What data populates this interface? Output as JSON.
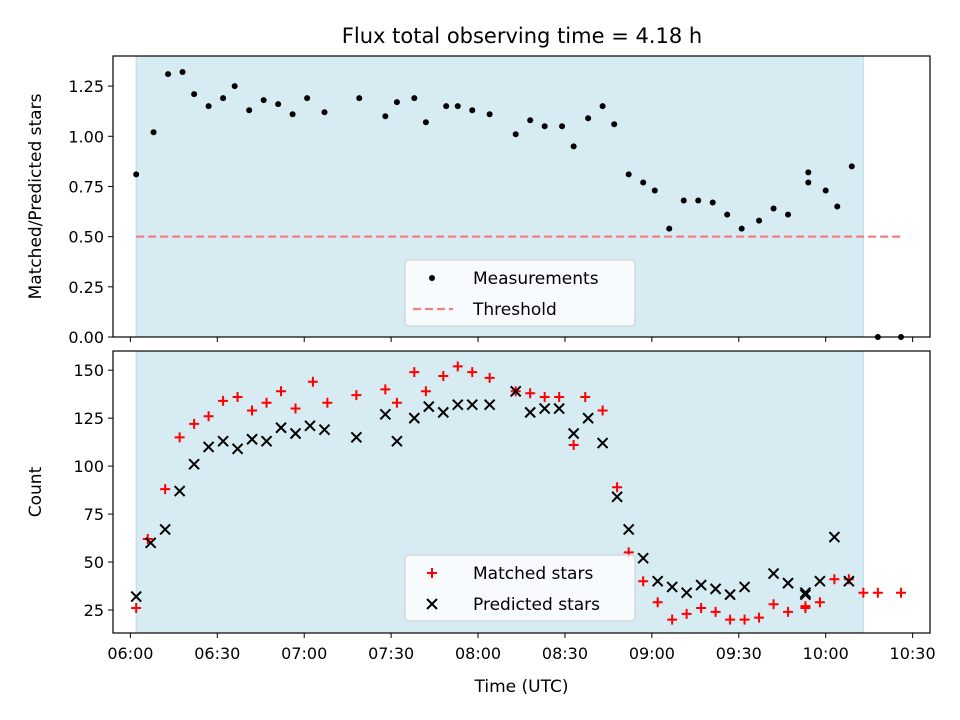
{
  "figure": {
    "title": "Flux total observing time = 4.18 h"
  },
  "chart_data": [
    {
      "type": "scatter",
      "ylabel": "Matched/Predicted stars",
      "xlabel": "",
      "xlim": [
        "05:54",
        "10:36"
      ],
      "ylim": [
        0,
        1.4
      ],
      "yticks": [
        "0.00",
        "0.25",
        "0.50",
        "0.75",
        "1.00",
        "1.25"
      ],
      "shaded_region": {
        "x": [
          "06:02",
          "10:13"
        ],
        "color": "#add8e6"
      },
      "threshold": {
        "name": "Threshold",
        "y": 0.5,
        "x": [
          "06:02",
          "10:27"
        ],
        "color": "#f08080"
      },
      "legend": {
        "position": "lower-center",
        "entries": [
          "Measurements",
          "Threshold"
        ]
      },
      "series": [
        {
          "name": "Measurements",
          "color": "#000000",
          "points": [
            [
              "06:02",
              0.81
            ],
            [
              "06:08",
              1.02
            ],
            [
              "06:13",
              1.31
            ],
            [
              "06:18",
              1.32
            ],
            [
              "06:22",
              1.21
            ],
            [
              "06:27",
              1.15
            ],
            [
              "06:32",
              1.19
            ],
            [
              "06:36",
              1.25
            ],
            [
              "06:41",
              1.13
            ],
            [
              "06:46",
              1.18
            ],
            [
              "06:51",
              1.16
            ],
            [
              "06:56",
              1.11
            ],
            [
              "07:01",
              1.19
            ],
            [
              "07:07",
              1.12
            ],
            [
              "07:19",
              1.19
            ],
            [
              "07:28",
              1.1
            ],
            [
              "07:32",
              1.17
            ],
            [
              "07:38",
              1.19
            ],
            [
              "07:42",
              1.07
            ],
            [
              "07:49",
              1.15
            ],
            [
              "07:53",
              1.15
            ],
            [
              "07:58",
              1.13
            ],
            [
              "08:04",
              1.11
            ],
            [
              "08:13",
              1.01
            ],
            [
              "08:18",
              1.08
            ],
            [
              "08:23",
              1.05
            ],
            [
              "08:29",
              1.05
            ],
            [
              "08:33",
              0.95
            ],
            [
              "08:38",
              1.09
            ],
            [
              "08:43",
              1.15
            ],
            [
              "08:47",
              1.06
            ],
            [
              "08:52",
              0.81
            ],
            [
              "08:57",
              0.77
            ],
            [
              "09:01",
              0.73
            ],
            [
              "09:06",
              0.54
            ],
            [
              "09:11",
              0.68
            ],
            [
              "09:16",
              0.68
            ],
            [
              "09:21",
              0.67
            ],
            [
              "09:26",
              0.61
            ],
            [
              "09:31",
              0.54
            ],
            [
              "09:37",
              0.58
            ],
            [
              "09:42",
              0.64
            ],
            [
              "09:47",
              0.61
            ],
            [
              "09:54",
              0.82
            ],
            [
              "09:54",
              0.77
            ],
            [
              "10:00",
              0.73
            ],
            [
              "10:04",
              0.65
            ],
            [
              "10:09",
              0.85
            ],
            [
              "10:18",
              0.0
            ],
            [
              "10:26",
              0.0
            ]
          ]
        }
      ]
    },
    {
      "type": "scatter",
      "ylabel": "Count",
      "xlabel": "Time (UTC)",
      "xlim": [
        "05:54",
        "10:36"
      ],
      "ylim": [
        13,
        160
      ],
      "yticks": [
        "25",
        "50",
        "75",
        "100",
        "125",
        "150"
      ],
      "xticks": [
        "06:00",
        "06:30",
        "07:00",
        "07:30",
        "08:00",
        "08:30",
        "09:00",
        "09:30",
        "10:00",
        "10:30"
      ],
      "shaded_region": {
        "x": [
          "06:02",
          "10:13"
        ],
        "color": "#add8e6"
      },
      "legend": {
        "position": "lower-center",
        "entries": [
          "Matched stars",
          "Predicted stars"
        ]
      },
      "series": [
        {
          "name": "Matched stars",
          "marker": "+",
          "color": "#ff0000",
          "points": [
            [
              "06:02",
              26
            ],
            [
              "06:06",
              62
            ],
            [
              "06:12",
              88
            ],
            [
              "06:17",
              115
            ],
            [
              "06:22",
              122
            ],
            [
              "06:27",
              126
            ],
            [
              "06:32",
              134
            ],
            [
              "06:37",
              136
            ],
            [
              "06:42",
              129
            ],
            [
              "06:47",
              133
            ],
            [
              "06:52",
              139
            ],
            [
              "06:57",
              130
            ],
            [
              "07:03",
              144
            ],
            [
              "07:08",
              133
            ],
            [
              "07:18",
              137
            ],
            [
              "07:28",
              140
            ],
            [
              "07:32",
              133
            ],
            [
              "07:38",
              149
            ],
            [
              "07:42",
              139
            ],
            [
              "07:48",
              147
            ],
            [
              "07:53",
              152
            ],
            [
              "07:58",
              149
            ],
            [
              "08:04",
              146
            ],
            [
              "08:13",
              139
            ],
            [
              "08:18",
              138
            ],
            [
              "08:23",
              136
            ],
            [
              "08:28",
              136
            ],
            [
              "08:33",
              111
            ],
            [
              "08:37",
              136
            ],
            [
              "08:43",
              129
            ],
            [
              "08:48",
              89
            ],
            [
              "08:52",
              55
            ],
            [
              "08:57",
              40
            ],
            [
              "09:02",
              29
            ],
            [
              "09:07",
              20
            ],
            [
              "09:12",
              23
            ],
            [
              "09:17",
              26
            ],
            [
              "09:22",
              24
            ],
            [
              "09:27",
              20
            ],
            [
              "09:32",
              20
            ],
            [
              "09:37",
              21
            ],
            [
              "09:42",
              28
            ],
            [
              "09:47",
              24
            ],
            [
              "09:53",
              26
            ],
            [
              "09:53",
              27
            ],
            [
              "09:58",
              29
            ],
            [
              "10:03",
              41
            ],
            [
              "10:08",
              41
            ],
            [
              "10:13",
              34
            ],
            [
              "10:18",
              34
            ],
            [
              "10:26",
              34
            ]
          ]
        },
        {
          "name": "Predicted stars",
          "marker": "x",
          "color": "#000000",
          "points": [
            [
              "06:02",
              32
            ],
            [
              "06:07",
              60
            ],
            [
              "06:12",
              67
            ],
            [
              "06:17",
              87
            ],
            [
              "06:22",
              101
            ],
            [
              "06:27",
              110
            ],
            [
              "06:32",
              113
            ],
            [
              "06:37",
              109
            ],
            [
              "06:42",
              114
            ],
            [
              "06:47",
              113
            ],
            [
              "06:52",
              120
            ],
            [
              "06:57",
              117
            ],
            [
              "07:02",
              121
            ],
            [
              "07:07",
              119
            ],
            [
              "07:18",
              115
            ],
            [
              "07:28",
              127
            ],
            [
              "07:32",
              113
            ],
            [
              "07:38",
              125
            ],
            [
              "07:43",
              131
            ],
            [
              "07:48",
              128
            ],
            [
              "07:53",
              132
            ],
            [
              "07:58",
              132
            ],
            [
              "08:04",
              132
            ],
            [
              "08:13",
              139
            ],
            [
              "08:18",
              128
            ],
            [
              "08:23",
              130
            ],
            [
              "08:28",
              130
            ],
            [
              "08:33",
              117
            ],
            [
              "08:38",
              125
            ],
            [
              "08:43",
              112
            ],
            [
              "08:48",
              84
            ],
            [
              "08:52",
              67
            ],
            [
              "08:57",
              52
            ],
            [
              "09:02",
              40
            ],
            [
              "09:07",
              37
            ],
            [
              "09:12",
              34
            ],
            [
              "09:17",
              38
            ],
            [
              "09:22",
              36
            ],
            [
              "09:27",
              33
            ],
            [
              "09:32",
              37
            ],
            [
              "09:42",
              44
            ],
            [
              "09:47",
              39
            ],
            [
              "09:53",
              34
            ],
            [
              "09:53",
              33
            ],
            [
              "09:58",
              40
            ],
            [
              "10:03",
              63
            ],
            [
              "10:08",
              40
            ]
          ]
        }
      ]
    }
  ]
}
